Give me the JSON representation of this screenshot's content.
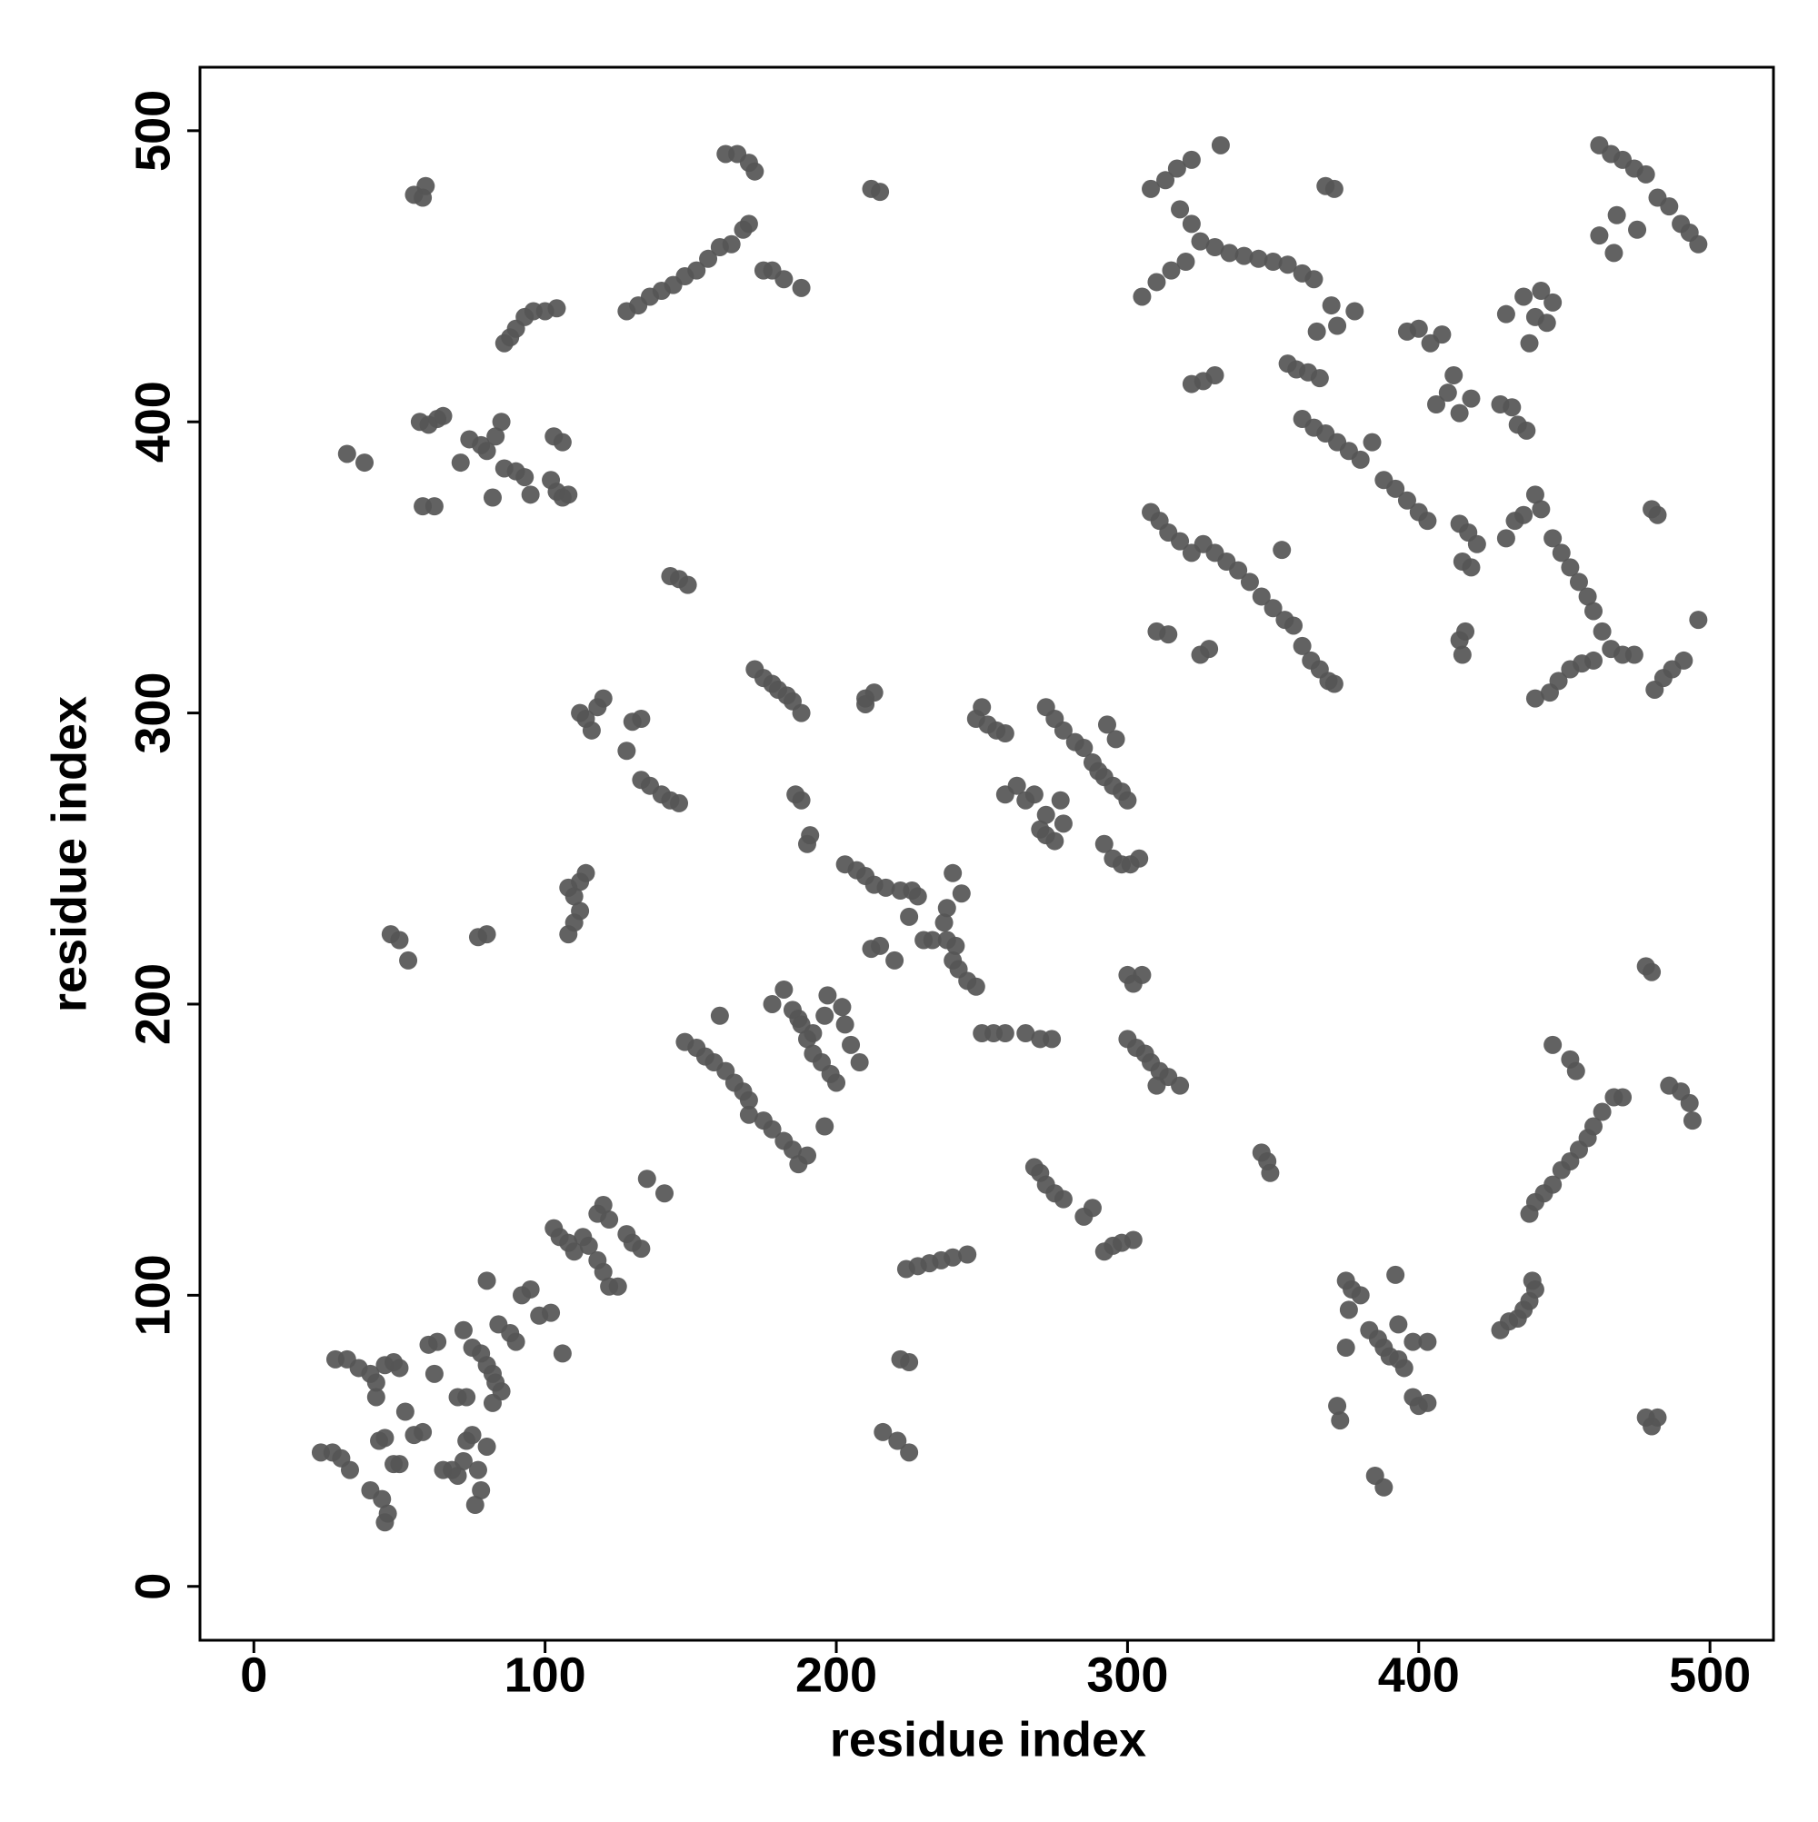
{
  "chart_data": {
    "type": "scatter",
    "xlabel": "residue index",
    "ylabel": "residue index",
    "color": "#555555",
    "xlim": [
      -18.5,
      521.8
    ],
    "ylim": [
      -18.5,
      521.8
    ],
    "xticks": [
      0,
      100,
      200,
      300,
      400,
      500
    ],
    "yticks": [
      0,
      100,
      200,
      300,
      400,
      500
    ],
    "x": [
      23,
      27,
      30,
      33,
      28,
      32,
      36,
      40,
      42,
      42,
      45,
      48,
      50,
      43,
      45,
      48,
      50,
      52,
      55,
      58,
      40,
      44,
      46,
      45,
      60,
      62,
      63,
      65,
      68,
      70,
      72,
      73,
      75,
      77,
      78,
      76,
      80,
      72,
      75,
      78,
      80,
      82,
      83,
      85,
      82,
      84,
      88,
      90,
      92,
      95,
      98,
      80,
      102,
      106,
      70,
      73,
      103,
      105,
      108,
      110,
      113,
      115,
      118,
      120,
      122,
      125,
      118,
      120,
      122,
      128,
      130,
      133,
      135,
      141,
      148,
      152,
      155,
      158,
      162,
      165,
      168,
      170,
      170,
      175,
      178,
      182,
      185,
      187,
      190,
      196,
      160,
      178,
      182,
      185,
      188,
      190,
      192,
      195,
      198,
      200,
      197,
      202,
      203,
      205,
      208,
      196,
      192,
      187,
      203,
      207,
      210,
      213,
      217,
      222,
      226,
      212,
      215,
      220,
      225,
      228,
      230,
      233,
      237,
      238,
      240,
      243,
      240,
      242,
      245,
      248,
      250,
      254,
      258,
      265,
      270,
      274,
      238,
      241,
      248,
      250,
      252,
      255,
      258,
      258,
      262,
      265,
      268,
      270,
      272,
      275,
      278,
      272,
      275,
      278,
      282,
      285,
      288,
      290,
      292,
      295,
      298,
      300,
      293,
      296,
      292,
      295,
      298,
      301,
      304,
      277,
      272,
      300,
      302,
      305,
      300,
      303,
      306,
      308,
      311,
      314,
      318,
      310,
      112,
      114,
      116,
      118,
      120,
      130,
      133,
      128,
      133,
      136,
      140,
      143,
      146,
      108,
      110,
      112,
      114,
      108,
      110,
      112,
      143,
      146,
      149,
      47,
      50,
      53,
      77,
      80,
      172,
      175,
      178,
      180,
      183,
      185,
      188,
      186,
      188,
      190,
      191,
      210,
      213,
      210,
      32,
      38,
      57,
      60,
      63,
      65,
      58,
      62,
      71,
      74,
      78,
      80,
      83,
      85,
      86,
      90,
      93,
      95,
      82,
      103,
      106,
      102,
      104,
      106,
      108,
      86,
      88,
      90,
      93,
      96,
      100,
      104,
      55,
      58,
      59,
      128,
      132,
      136,
      140,
      144,
      148,
      152,
      156,
      160,
      164,
      168,
      170,
      162,
      166,
      170,
      172,
      175,
      178,
      182,
      188,
      212,
      215,
      224,
      228,
      232,
      236,
      240,
      245,
      222,
      225,
      216,
      221,
      225,
      268,
      270,
      272,
      275,
      278,
      285,
      288,
      292,
      295,
      298,
      302,
      346,
      348,
      349,
      372,
      373,
      375,
      377,
      380,
      376,
      383,
      386,
      388,
      390,
      393,
      395,
      392,
      393,
      398,
      400,
      403,
      398,
      403,
      385,
      388,
      375,
      428,
      431,
      434,
      436,
      438,
      440,
      439,
      438,
      440,
      443,
      446,
      449,
      452,
      455,
      458,
      460,
      463,
      467,
      470,
      446,
      452,
      454,
      478,
      480,
      482,
      478,
      480,
      486,
      490,
      493,
      494,
      305,
      310,
      315,
      320,
      308,
      313,
      317,
      322,
      318,
      322,
      325,
      330,
      335,
      340,
      345,
      350,
      355,
      360,
      364,
      332,
      322,
      326,
      330,
      368,
      371,
      378,
      370,
      365,
      372,
      355,
      358,
      362,
      366,
      360,
      364,
      368,
      372,
      376,
      380,
      384,
      388,
      392,
      396,
      400,
      403,
      396,
      400,
      404,
      408,
      412,
      410,
      406,
      414,
      418,
      428,
      432,
      434,
      437,
      430,
      436,
      440,
      444,
      446,
      438,
      442,
      308,
      311,
      314,
      318,
      322,
      326,
      330,
      334,
      338,
      342,
      346,
      350,
      354,
      357,
      353,
      360,
      363,
      366,
      369,
      371,
      310,
      314,
      325,
      328,
      414,
      417,
      420,
      415,
      418,
      414,
      416,
      415,
      430,
      433,
      436,
      440,
      442,
      446,
      449,
      452,
      455,
      458,
      460,
      463,
      466,
      470,
      474,
      440,
      445,
      448,
      452,
      456,
      460,
      480,
      482,
      481,
      484,
      487,
      491,
      496,
      462,
      466,
      470,
      474,
      478,
      482,
      486,
      490,
      493,
      496,
      462,
      467,
      468,
      475
    ],
    "values": [
      46,
      46,
      44,
      40,
      78,
      78,
      75,
      73,
      70,
      65,
      76,
      77,
      75,
      50,
      51,
      42,
      42,
      60,
      52,
      53,
      33,
      30,
      25,
      22,
      83,
      73,
      84,
      40,
      40,
      38,
      43,
      50,
      52,
      40,
      33,
      28,
      48,
      88,
      82,
      80,
      76,
      73,
      70,
      67,
      63,
      90,
      87,
      84,
      100,
      102,
      93,
      105,
      94,
      80,
      65,
      65,
      123,
      120,
      118,
      115,
      120,
      117,
      112,
      108,
      103,
      103,
      128,
      131,
      126,
      121,
      118,
      116,
      140,
      135,
      187,
      185,
      182,
      180,
      177,
      173,
      170,
      167,
      162,
      160,
      157,
      153,
      150,
      145,
      148,
      196,
      196,
      200,
      205,
      198,
      193,
      188,
      183,
      180,
      176,
      173,
      203,
      199,
      193,
      186,
      180,
      158,
      190,
      195,
      248,
      246,
      244,
      241,
      240,
      239,
      239,
      219,
      220,
      215,
      230,
      237,
      222,
      222,
      228,
      233,
      245,
      238,
      215,
      212,
      208,
      206,
      190,
      190,
      190,
      190,
      188,
      188,
      222,
      220,
      298,
      302,
      296,
      294,
      293,
      272,
      275,
      270,
      272,
      260,
      258,
      256,
      262,
      302,
      298,
      294,
      290,
      288,
      283,
      280,
      278,
      275,
      273,
      270,
      296,
      291,
      255,
      250,
      248,
      248,
      250,
      270,
      265,
      210,
      207,
      210,
      188,
      185,
      183,
      180,
      177,
      175,
      172,
      172,
      300,
      298,
      294,
      302,
      305,
      297,
      298,
      287,
      277,
      275,
      272,
      270,
      269,
      240,
      237,
      242,
      245,
      224,
      228,
      232,
      347,
      346,
      344,
      224,
      222,
      215,
      223,
      224,
      315,
      312,
      310,
      308,
      306,
      304,
      300,
      272,
      270,
      255,
      258,
      305,
      307,
      303,
      389,
      386,
      400,
      399,
      401,
      402,
      371,
      371,
      386,
      394,
      392,
      390,
      395,
      400,
      384,
      383,
      381,
      375,
      374,
      395,
      393,
      380,
      376,
      374,
      375,
      427,
      429,
      432,
      436,
      438,
      438,
      439,
      478,
      477,
      481,
      438,
      440,
      443,
      445,
      447,
      450,
      452,
      456,
      460,
      461,
      466,
      468,
      492,
      492,
      489,
      486,
      452,
      452,
      449,
      446,
      480,
      479,
      109,
      110,
      111,
      112,
      113,
      114,
      78,
      77,
      53,
      50,
      46,
      144,
      142,
      138,
      135,
      133,
      127,
      130,
      115,
      117,
      118,
      119,
      149,
      146,
      142,
      62,
      57,
      105,
      102,
      100,
      95,
      88,
      85,
      82,
      79,
      78,
      75,
      107,
      90,
      65,
      62,
      63,
      84,
      84,
      38,
      34,
      82,
      88,
      91,
      92,
      95,
      98,
      102,
      105,
      128,
      132,
      135,
      138,
      143,
      146,
      150,
      154,
      158,
      163,
      168,
      168,
      186,
      181,
      177,
      58,
      55,
      58,
      213,
      211,
      172,
      170,
      166,
      160,
      443,
      448,
      452,
      455,
      480,
      483,
      487,
      490,
      473,
      468,
      462,
      460,
      458,
      457,
      456,
      455,
      454,
      451,
      449,
      495,
      413,
      414,
      416,
      481,
      480,
      438,
      440,
      431,
      433,
      420,
      418,
      417,
      415,
      401,
      398,
      396,
      393,
      390,
      387,
      393,
      380,
      377,
      373,
      369,
      366,
      431,
      432,
      427,
      430,
      416,
      410,
      406,
      403,
      408,
      406,
      405,
      399,
      397,
      437,
      443,
      436,
      434,
      441,
      427,
      445,
      369,
      366,
      362,
      359,
      355,
      358,
      355,
      352,
      349,
      345,
      340,
      336,
      332,
      330,
      356,
      323,
      318,
      315,
      311,
      310,
      328,
      327,
      320,
      322,
      365,
      362,
      358,
      352,
      350,
      325,
      328,
      320,
      360,
      366,
      368,
      375,
      370,
      360,
      355,
      350,
      345,
      340,
      335,
      328,
      322,
      320,
      320,
      305,
      307,
      311,
      315,
      317,
      318,
      370,
      368,
      308,
      312,
      315,
      318,
      332,
      495,
      492,
      490,
      487,
      485,
      477,
      474,
      468,
      465,
      461,
      464,
      458,
      471,
      466
    ]
  }
}
